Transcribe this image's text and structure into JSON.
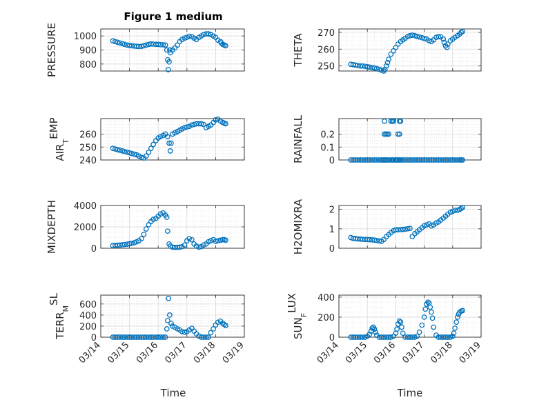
{
  "figure": {
    "title": "Figure 1 medium",
    "xlabel": "Time",
    "xticks": [
      "03/14",
      "03/15",
      "03/16",
      "03/17",
      "03/18",
      "03/19"
    ]
  },
  "colors": {
    "marker": "#0072bd",
    "axis": "#262626",
    "grid": "#d9d9d9",
    "grid_minor": "#e4e4e4"
  },
  "chart_data": [
    {
      "type": "scatter",
      "ylabel": "PRESSURE",
      "ylim": [
        750,
        1050
      ],
      "yticks": [
        {
          "v": 800,
          "t": "800"
        },
        {
          "v": 900,
          "t": "900"
        },
        {
          "v": 1000,
          "t": "1000"
        }
      ],
      "xlim": [
        0,
        5
      ],
      "grid": "major+minor",
      "marker": "open-circle",
      "x": [
        0.42,
        0.5,
        0.58,
        0.66,
        0.75,
        0.83,
        0.92,
        1.0,
        1.08,
        1.17,
        1.25,
        1.33,
        1.42,
        1.5,
        1.58,
        1.67,
        1.75,
        1.83,
        1.92,
        2.0,
        2.08,
        2.17,
        2.25,
        2.3,
        2.33,
        2.35,
        2.38,
        2.4,
        2.42,
        2.5,
        2.58,
        2.67,
        2.75,
        2.83,
        2.92,
        3.0,
        3.08,
        3.17,
        3.25,
        3.33,
        3.42,
        3.5,
        3.58,
        3.67,
        3.75,
        3.83,
        3.92,
        4.0,
        4.08,
        4.17,
        4.2,
        4.25,
        4.3,
        4.35
      ],
      "y": [
        965,
        960,
        955,
        950,
        945,
        940,
        935,
        932,
        930,
        928,
        926,
        925,
        926,
        930,
        935,
        940,
        943,
        942,
        940,
        940,
        938,
        937,
        935,
        900,
        830,
        760,
        815,
        900,
        880,
        900,
        915,
        935,
        960,
        975,
        985,
        990,
        998,
        995,
        985,
        975,
        990,
        1000,
        1010,
        1015,
        1015,
        1010,
        1000,
        990,
        970,
        960,
        950,
        940,
        935,
        930
      ],
      "data_name": "pressure"
    },
    {
      "type": "scatter",
      "ylabel": "THETA",
      "ylim": [
        247,
        272
      ],
      "yticks": [
        {
          "v": 250,
          "t": "250"
        },
        {
          "v": 260,
          "t": "260"
        },
        {
          "v": 270,
          "t": "270"
        }
      ],
      "xlim": [
        0,
        5
      ],
      "grid": "major+minor",
      "marker": "open-circle",
      "x": [
        0.42,
        0.5,
        0.58,
        0.66,
        0.75,
        0.83,
        0.92,
        1.0,
        1.08,
        1.17,
        1.25,
        1.33,
        1.42,
        1.5,
        1.58,
        1.62,
        1.67,
        1.71,
        1.75,
        1.83,
        1.92,
        2.0,
        2.08,
        2.17,
        2.25,
        2.33,
        2.42,
        2.5,
        2.58,
        2.67,
        2.75,
        2.83,
        2.92,
        3.0,
        3.08,
        3.17,
        3.25,
        3.33,
        3.42,
        3.5,
        3.58,
        3.67,
        3.7,
        3.75,
        3.8,
        3.83,
        3.92,
        4.0,
        4.08,
        4.17,
        4.25,
        4.3,
        4.35
      ],
      "y": [
        251,
        250.8,
        250.5,
        250.3,
        250,
        250,
        249.8,
        249.5,
        249.3,
        249,
        248.8,
        248.5,
        248,
        247.5,
        247,
        248,
        250,
        252,
        254,
        257,
        259,
        261,
        263,
        264.5,
        265.5,
        266.5,
        267.5,
        268,
        268.3,
        268,
        267.6,
        267.2,
        266.8,
        266.4,
        266,
        265,
        264.5,
        265.5,
        267,
        267.5,
        267.3,
        266,
        264,
        262,
        261,
        263,
        265,
        266,
        267,
        268,
        269,
        270,
        270.5
      ],
      "data_name": "theta"
    },
    {
      "type": "scatter",
      "ylabel": "AIR",
      "ylabel_sub": "T",
      "ylabel_end": "EMP",
      "ylim": [
        240,
        272
      ],
      "yticks": [
        {
          "v": 240,
          "t": "240"
        },
        {
          "v": 250,
          "t": "250"
        },
        {
          "v": 260,
          "t": "260"
        }
      ],
      "xlim": [
        0,
        5
      ],
      "grid": "major+minor",
      "marker": "open-circle",
      "x": [
        0.42,
        0.5,
        0.58,
        0.66,
        0.75,
        0.83,
        0.92,
        1.0,
        1.08,
        1.17,
        1.25,
        1.33,
        1.42,
        1.5,
        1.58,
        1.67,
        1.75,
        1.83,
        1.92,
        2.0,
        2.08,
        2.17,
        2.25,
        2.33,
        2.38,
        2.42,
        2.45,
        2.5,
        2.58,
        2.67,
        2.75,
        2.83,
        2.92,
        3.0,
        3.08,
        3.17,
        3.25,
        3.33,
        3.42,
        3.5,
        3.58,
        3.67,
        3.75,
        3.83,
        3.92,
        4.0,
        4.08,
        4.17,
        4.25,
        4.3,
        4.35
      ],
      "y": [
        249,
        248.5,
        248,
        247.5,
        247,
        246.5,
        246,
        245.5,
        245,
        244.5,
        244,
        243,
        242,
        241.5,
        243,
        246,
        249,
        252,
        255,
        257,
        258,
        259,
        260,
        258,
        253,
        247,
        253,
        260,
        261,
        262,
        263,
        264,
        265,
        265.5,
        266,
        267,
        267.5,
        268,
        268,
        268,
        267.5,
        265,
        266,
        267,
        269,
        271,
        271.5,
        270,
        269,
        268.5,
        268
      ],
      "data_name": "air-temp"
    },
    {
      "type": "scatter",
      "ylabel": "RAINFALL",
      "ylim": [
        0,
        0.32
      ],
      "yticks": [
        {
          "v": 0,
          "t": "0"
        },
        {
          "v": 0.1,
          "t": "0.1"
        },
        {
          "v": 0.2,
          "t": "0.2"
        }
      ],
      "xlim": [
        0,
        5
      ],
      "grid": "major+minor",
      "marker": "open-circle",
      "x": [
        0.42,
        0.5,
        0.58,
        0.66,
        0.75,
        0.83,
        0.92,
        1.0,
        1.08,
        1.17,
        1.25,
        1.33,
        1.42,
        1.5,
        1.55,
        1.6,
        1.65,
        1.7,
        1.75,
        1.83,
        1.88,
        1.92,
        2.0,
        2.04,
        2.08,
        2.13,
        2.17,
        2.25,
        2.33,
        2.42,
        2.5,
        2.58,
        2.67,
        2.75,
        2.83,
        2.92,
        3.0,
        3.08,
        3.17,
        3.25,
        3.33,
        3.42,
        3.5,
        3.58,
        3.67,
        3.75,
        3.83,
        3.92,
        4.0,
        4.08,
        4.17,
        4.25,
        4.3,
        4.35,
        1.6,
        1.65,
        1.7,
        1.75,
        2.08,
        2.13,
        1.6,
        1.83,
        1.88,
        1.92,
        2.13,
        2.17
      ],
      "y": [
        0,
        0,
        0,
        0,
        0,
        0,
        0,
        0,
        0,
        0,
        0,
        0,
        0,
        0,
        0,
        0,
        0,
        0,
        0,
        0,
        0,
        0,
        0,
        0,
        0,
        0,
        0,
        0,
        0,
        0,
        0,
        0,
        0,
        0,
        0,
        0,
        0,
        0,
        0,
        0,
        0,
        0,
        0,
        0,
        0,
        0,
        0,
        0,
        0,
        0,
        0,
        0,
        0,
        0,
        0.2,
        0.2,
        0.2,
        0.2,
        0.2,
        0.2,
        0.3,
        0.3,
        0.3,
        0.3,
        0.3,
        0.3
      ],
      "data_name": "rainfall"
    },
    {
      "type": "scatter",
      "ylabel": "MIXDEPTH",
      "ylim": [
        0,
        4000
      ],
      "yticks": [
        {
          "v": 0,
          "t": "0"
        },
        {
          "v": 2000,
          "t": "2000"
        },
        {
          "v": 4000,
          "t": "4000"
        }
      ],
      "xlim": [
        0,
        5
      ],
      "grid": "major+minor",
      "marker": "open-circle",
      "x": [
        0.42,
        0.5,
        0.58,
        0.66,
        0.75,
        0.83,
        0.92,
        1.0,
        1.08,
        1.17,
        1.25,
        1.33,
        1.42,
        1.5,
        1.58,
        1.67,
        1.75,
        1.83,
        1.92,
        2.0,
        2.08,
        2.17,
        2.25,
        2.3,
        2.33,
        2.38,
        2.42,
        2.5,
        2.58,
        2.67,
        2.75,
        2.83,
        2.92,
        3.0,
        3.08,
        3.17,
        3.25,
        3.33,
        3.42,
        3.5,
        3.58,
        3.67,
        3.75,
        3.83,
        3.92,
        4.0,
        4.08,
        4.17,
        4.25,
        4.3,
        4.35
      ],
      "y": [
        250,
        260,
        280,
        300,
        320,
        350,
        380,
        420,
        460,
        520,
        600,
        700,
        900,
        1300,
        1800,
        2200,
        2500,
        2700,
        2800,
        3000,
        3200,
        3300,
        3100,
        2900,
        1600,
        400,
        200,
        100,
        80,
        80,
        100,
        150,
        300,
        700,
        900,
        800,
        400,
        200,
        100,
        150,
        300,
        400,
        600,
        700,
        800,
        650,
        700,
        750,
        800,
        800,
        750
      ],
      "data_name": "mixdepth"
    },
    {
      "type": "scatter",
      "ylabel": "H2OMIXRA",
      "ylim": [
        0,
        2.2
      ],
      "yticks": [
        {
          "v": 0,
          "t": "0"
        },
        {
          "v": 1,
          "t": "1"
        },
        {
          "v": 2,
          "t": "2"
        }
      ],
      "xlim": [
        0,
        5
      ],
      "grid": "major+minor",
      "marker": "open-circle",
      "x": [
        0.42,
        0.5,
        0.58,
        0.66,
        0.75,
        0.83,
        0.92,
        1.0,
        1.08,
        1.17,
        1.25,
        1.33,
        1.42,
        1.5,
        1.58,
        1.67,
        1.75,
        1.83,
        1.92,
        2.0,
        2.08,
        2.17,
        2.25,
        2.33,
        2.42,
        2.5,
        2.58,
        2.67,
        2.75,
        2.83,
        2.92,
        3.0,
        3.08,
        3.17,
        3.25,
        3.33,
        3.42,
        3.5,
        3.58,
        3.67,
        3.75,
        3.83,
        3.92,
        4.0,
        4.08,
        4.17,
        4.25,
        4.3,
        4.35
      ],
      "y": [
        0.55,
        0.5,
        0.5,
        0.48,
        0.47,
        0.46,
        0.45,
        0.45,
        0.44,
        0.43,
        0.42,
        0.4,
        0.38,
        0.36,
        0.45,
        0.6,
        0.7,
        0.8,
        0.9,
        0.95,
        0.95,
        0.96,
        0.97,
        0.98,
        1.0,
        1.02,
        0.6,
        0.75,
        0.85,
        0.95,
        1.05,
        1.15,
        1.2,
        1.25,
        1.15,
        1.2,
        1.3,
        1.35,
        1.45,
        1.55,
        1.65,
        1.75,
        1.85,
        1.9,
        1.95,
        1.95,
        2.0,
        2.05,
        2.1
      ],
      "data_name": "h2omixra"
    },
    {
      "type": "scatter",
      "ylabel": "TERR",
      "ylabel_sub": "M",
      "ylabel_end": "SL",
      "ylim": [
        0,
        760
      ],
      "yticks": [
        {
          "v": 0,
          "t": "0"
        },
        {
          "v": 200,
          "t": "200"
        },
        {
          "v": 400,
          "t": "400"
        },
        {
          "v": 600,
          "t": "600"
        }
      ],
      "xlim": [
        0,
        5
      ],
      "grid": "major+minor",
      "marker": "open-circle",
      "x": [
        0.42,
        0.5,
        0.58,
        0.66,
        0.75,
        0.83,
        0.92,
        1.0,
        1.08,
        1.17,
        1.25,
        1.33,
        1.42,
        1.5,
        1.58,
        1.67,
        1.75,
        1.83,
        1.92,
        2.0,
        2.08,
        2.17,
        2.25,
        2.3,
        2.33,
        2.36,
        2.4,
        2.45,
        2.5,
        2.58,
        2.67,
        2.75,
        2.83,
        2.92,
        3.0,
        3.08,
        3.17,
        3.25,
        3.33,
        3.42,
        3.5,
        3.58,
        3.67,
        3.75,
        3.83,
        3.92,
        4.0,
        4.08,
        4.17,
        4.25,
        4.3,
        4.35
      ],
      "y": [
        0,
        0,
        0,
        0,
        0,
        0,
        0,
        0,
        0,
        0,
        0,
        0,
        0,
        0,
        0,
        0,
        0,
        0,
        0,
        0,
        0,
        0,
        0,
        150,
        300,
        700,
        400,
        250,
        200,
        180,
        150,
        130,
        100,
        90,
        100,
        130,
        160,
        110,
        60,
        20,
        0,
        0,
        0,
        0,
        80,
        150,
        220,
        270,
        290,
        250,
        230,
        210
      ],
      "data_name": "terrain"
    },
    {
      "type": "scatter",
      "ylabel": "SUN",
      "ylabel_sub": "F",
      "ylabel_end": "LUX",
      "ylim": [
        0,
        420
      ],
      "yticks": [
        {
          "v": 0,
          "t": "0"
        },
        {
          "v": 200,
          "t": "200"
        },
        {
          "v": 400,
          "t": "400"
        }
      ],
      "xlim": [
        0,
        5
      ],
      "grid": "major+minor",
      "marker": "open-circle",
      "x": [
        0.42,
        0.5,
        0.58,
        0.66,
        0.75,
        0.83,
        0.92,
        1.0,
        1.08,
        1.13,
        1.17,
        1.21,
        1.25,
        1.29,
        1.33,
        1.42,
        1.5,
        1.58,
        1.67,
        1.75,
        1.83,
        1.92,
        2.0,
        2.04,
        2.08,
        2.13,
        2.17,
        2.21,
        2.25,
        2.33,
        2.42,
        2.5,
        2.58,
        2.67,
        2.75,
        2.83,
        2.92,
        3.0,
        3.04,
        3.08,
        3.13,
        3.17,
        3.21,
        3.25,
        3.29,
        3.33,
        3.42,
        3.5,
        3.58,
        3.67,
        3.75,
        3.83,
        3.92,
        4.0,
        4.04,
        4.08,
        4.13,
        4.17,
        4.21,
        4.25,
        4.3,
        4.35
      ],
      "y": [
        0,
        0,
        0,
        0,
        0,
        0,
        0,
        10,
        30,
        60,
        90,
        100,
        80,
        50,
        20,
        0,
        0,
        0,
        0,
        0,
        0,
        10,
        40,
        80,
        130,
        160,
        150,
        100,
        40,
        0,
        0,
        0,
        0,
        0,
        10,
        50,
        120,
        200,
        280,
        330,
        350,
        340,
        300,
        250,
        190,
        100,
        20,
        0,
        0,
        0,
        0,
        0,
        0,
        10,
        40,
        90,
        150,
        200,
        230,
        250,
        260,
        265
      ],
      "data_name": "sun-flux"
    }
  ]
}
